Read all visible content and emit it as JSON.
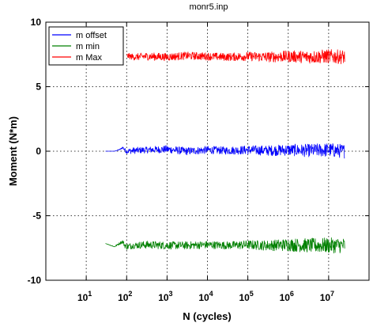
{
  "chart_data": {
    "type": "line",
    "title": "monr5.inp",
    "xlabel": "N (cycles)",
    "ylabel": "Moment (N*m)",
    "x_scale": "log",
    "xlim": [
      1,
      100000000
    ],
    "ylim": [
      -10,
      10
    ],
    "grid": true,
    "legend_position": "top-left",
    "x_ticks": [
      {
        "value": 10,
        "base": "10",
        "exp": "1"
      },
      {
        "value": 100,
        "base": "10",
        "exp": "2"
      },
      {
        "value": 1000,
        "base": "10",
        "exp": "3"
      },
      {
        "value": 10000,
        "base": "10",
        "exp": "4"
      },
      {
        "value": 100000,
        "base": "10",
        "exp": "5"
      },
      {
        "value": 1000000,
        "base": "10",
        "exp": "6"
      },
      {
        "value": 10000000,
        "base": "10",
        "exp": "7"
      }
    ],
    "y_ticks": [
      {
        "value": 10,
        "label": "10"
      },
      {
        "value": 5,
        "label": "5"
      },
      {
        "value": 0,
        "label": "0"
      },
      {
        "value": -5,
        "label": "-5"
      },
      {
        "value": -10,
        "label": "-10"
      }
    ],
    "series": [
      {
        "name": "m offset",
        "color": "#0000ff",
        "x": [
          30,
          50,
          70,
          80,
          90,
          100,
          150,
          300,
          1000,
          3000,
          10000,
          30000,
          100000,
          300000,
          1000000,
          3000000,
          10000000,
          25000000
        ],
        "y": [
          0.0,
          0.0,
          0.15,
          0.3,
          0.1,
          0.0,
          0.05,
          0.1,
          0.15,
          0.0,
          0.1,
          0.05,
          0.1,
          0.05,
          0.1,
          0.05,
          0.1,
          0.0
        ],
        "noise_amplitude": [
          0.0,
          0.0,
          0.05,
          0.1,
          0.15,
          0.2,
          0.25,
          0.25,
          0.3,
          0.3,
          0.3,
          0.3,
          0.35,
          0.4,
          0.45,
          0.5,
          0.55,
          0.55
        ]
      },
      {
        "name": "m min",
        "color": "#008000",
        "x": [
          30,
          50,
          70,
          80,
          90,
          100,
          150,
          300,
          1000,
          3000,
          10000,
          30000,
          100000,
          300000,
          1000000,
          3000000,
          10000000,
          25000000
        ],
        "y": [
          -7.15,
          -7.4,
          -7.1,
          -7.0,
          -7.3,
          -7.4,
          -7.3,
          -7.25,
          -7.3,
          -7.3,
          -7.25,
          -7.3,
          -7.25,
          -7.3,
          -7.25,
          -7.3,
          -7.3,
          -7.3
        ],
        "noise_amplitude": [
          0.0,
          0.05,
          0.1,
          0.15,
          0.2,
          0.25,
          0.25,
          0.3,
          0.3,
          0.3,
          0.3,
          0.3,
          0.35,
          0.4,
          0.5,
          0.55,
          0.6,
          0.6
        ]
      },
      {
        "name": "m Max",
        "color": "#ff0000",
        "x": [
          100,
          150,
          300,
          1000,
          3000,
          10000,
          30000,
          100000,
          300000,
          1000000,
          3000000,
          10000000,
          25000000
        ],
        "y": [
          7.4,
          7.3,
          7.35,
          7.3,
          7.4,
          7.35,
          7.3,
          7.35,
          7.3,
          7.35,
          7.3,
          7.35,
          7.3
        ],
        "noise_amplitude": [
          0.2,
          0.25,
          0.3,
          0.3,
          0.3,
          0.3,
          0.3,
          0.35,
          0.4,
          0.45,
          0.5,
          0.55,
          0.55
        ]
      }
    ]
  }
}
